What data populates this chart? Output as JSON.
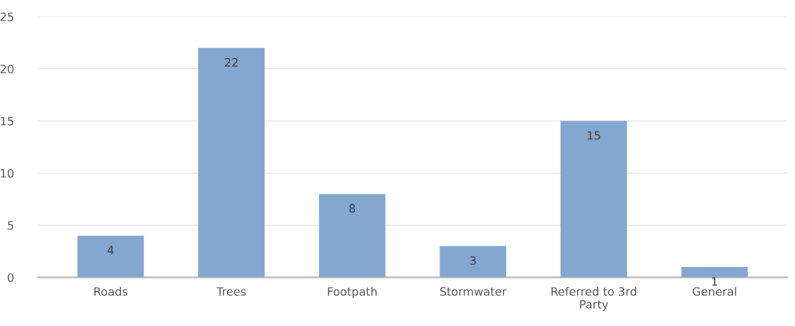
{
  "chart_data": {
    "type": "bar",
    "categories": [
      "Roads",
      "Trees",
      "Footpath",
      "Stormwater",
      "Referred to 3rd\nParty",
      "General"
    ],
    "values": [
      4,
      22,
      8,
      3,
      15,
      1
    ],
    "color": "#84a7cf",
    "ylim": [
      0,
      25
    ],
    "yticks": [
      0,
      5,
      10,
      15,
      20,
      25
    ],
    "grid": "y",
    "data_labels": true,
    "legend": false
  }
}
